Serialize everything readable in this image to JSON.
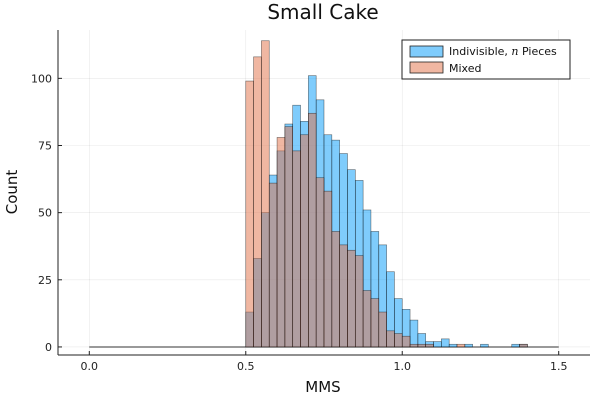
{
  "chart_data": {
    "type": "bar",
    "title": "Small Cake",
    "xlabel": "MMS",
    "ylabel": "Count",
    "xlim": [
      -0.1,
      1.6
    ],
    "ylim": [
      -3,
      118
    ],
    "xticks": [
      0.0,
      0.5,
      1.0,
      1.5
    ],
    "xtick_labels": [
      "0.0",
      "0.5",
      "1.0",
      "1.5"
    ],
    "yticks": [
      0,
      25,
      50,
      75,
      100
    ],
    "ytick_labels": [
      "0",
      "25",
      "50",
      "75",
      "100"
    ],
    "grid": true,
    "legend_position": "top-right",
    "bin_width": 0.025,
    "series": [
      {
        "name": "Indivisible, n Pieces",
        "label_prefix": "Indivisible, ",
        "label_math": "n",
        "label_suffix": " Pieces",
        "color": "#009AFA",
        "alpha": 0.5,
        "bins": [
          {
            "x": 0.5,
            "value": 13
          },
          {
            "x": 0.525,
            "value": 33
          },
          {
            "x": 0.55,
            "value": 50
          },
          {
            "x": 0.575,
            "value": 64
          },
          {
            "x": 0.6,
            "value": 73
          },
          {
            "x": 0.625,
            "value": 83
          },
          {
            "x": 0.65,
            "value": 90
          },
          {
            "x": 0.675,
            "value": 84
          },
          {
            "x": 0.7,
            "value": 101
          },
          {
            "x": 0.725,
            "value": 92
          },
          {
            "x": 0.75,
            "value": 79
          },
          {
            "x": 0.775,
            "value": 77
          },
          {
            "x": 0.8,
            "value": 72
          },
          {
            "x": 0.825,
            "value": 66
          },
          {
            "x": 0.85,
            "value": 62
          },
          {
            "x": 0.875,
            "value": 51
          },
          {
            "x": 0.9,
            "value": 43
          },
          {
            "x": 0.925,
            "value": 38
          },
          {
            "x": 0.95,
            "value": 28
          },
          {
            "x": 0.975,
            "value": 18
          },
          {
            "x": 1.0,
            "value": 14
          },
          {
            "x": 1.025,
            "value": 10
          },
          {
            "x": 1.05,
            "value": 5
          },
          {
            "x": 1.075,
            "value": 2
          },
          {
            "x": 1.1,
            "value": 2
          },
          {
            "x": 1.125,
            "value": 3
          },
          {
            "x": 1.15,
            "value": 1
          },
          {
            "x": 1.175,
            "value": 0
          },
          {
            "x": 1.2,
            "value": 1
          },
          {
            "x": 1.225,
            "value": 0
          },
          {
            "x": 1.25,
            "value": 1
          },
          {
            "x": 1.275,
            "value": 0
          },
          {
            "x": 1.3,
            "value": 0
          },
          {
            "x": 1.325,
            "value": 0
          },
          {
            "x": 1.35,
            "value": 1
          },
          {
            "x": 1.375,
            "value": 1
          }
        ]
      },
      {
        "name": "Mixed",
        "color": "#E26F46",
        "alpha": 0.5,
        "bins": [
          {
            "x": 0.5,
            "value": 99
          },
          {
            "x": 0.525,
            "value": 108
          },
          {
            "x": 0.55,
            "value": 114
          },
          {
            "x": 0.575,
            "value": 61
          },
          {
            "x": 0.6,
            "value": 78
          },
          {
            "x": 0.625,
            "value": 82
          },
          {
            "x": 0.65,
            "value": 73
          },
          {
            "x": 0.675,
            "value": 79
          },
          {
            "x": 0.7,
            "value": 87
          },
          {
            "x": 0.725,
            "value": 63
          },
          {
            "x": 0.75,
            "value": 58
          },
          {
            "x": 0.775,
            "value": 43
          },
          {
            "x": 0.8,
            "value": 38
          },
          {
            "x": 0.825,
            "value": 36
          },
          {
            "x": 0.85,
            "value": 34
          },
          {
            "x": 0.875,
            "value": 21
          },
          {
            "x": 0.9,
            "value": 18
          },
          {
            "x": 0.925,
            "value": 13
          },
          {
            "x": 0.95,
            "value": 6
          },
          {
            "x": 0.975,
            "value": 5
          },
          {
            "x": 1.0,
            "value": 4
          },
          {
            "x": 1.025,
            "value": 1
          },
          {
            "x": 1.05,
            "value": 1
          },
          {
            "x": 1.075,
            "value": 1
          },
          {
            "x": 1.1,
            "value": 0
          },
          {
            "x": 1.125,
            "value": 0
          },
          {
            "x": 1.15,
            "value": 0
          },
          {
            "x": 1.175,
            "value": 1
          },
          {
            "x": 1.2,
            "value": 0
          },
          {
            "x": 1.225,
            "value": 0
          },
          {
            "x": 1.25,
            "value": 0
          },
          {
            "x": 1.275,
            "value": 0
          },
          {
            "x": 1.3,
            "value": 0
          },
          {
            "x": 1.325,
            "value": 0
          },
          {
            "x": 1.35,
            "value": 0
          },
          {
            "x": 1.375,
            "value": 1
          }
        ]
      }
    ],
    "baseline_segment": {
      "x_from": 0.0,
      "x_to": 1.5,
      "value": 0
    }
  }
}
